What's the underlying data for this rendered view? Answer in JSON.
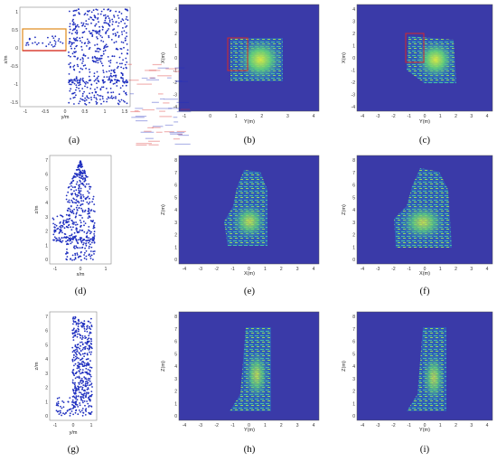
{
  "captions": [
    "(a)",
    "(b)",
    "(c)",
    "(d)",
    "(e)",
    "(f)",
    "(g)",
    "(h)",
    "(i)"
  ],
  "colors": {
    "scatter_point": "#1f2fbf",
    "heatmap_bg": "#3a3aa8",
    "highlight_box": "#d62828",
    "orange_box": "#e08a1a"
  },
  "panels": {
    "a": {
      "xlabel": "y/m",
      "ylabel": "x/m",
      "xticks": [
        "-1",
        "-0.5",
        "0",
        "0.5",
        "1",
        "1.5"
      ],
      "yticks": [
        "1",
        "0.5",
        "0",
        "-0.5",
        "-1",
        "-1.5"
      ]
    },
    "b": {
      "xlabel": "Y(m)",
      "ylabel": "X(m)",
      "xticks": [
        "-1",
        "0",
        "1",
        "2",
        "3",
        "4"
      ],
      "yticks": [
        "4",
        "3",
        "2",
        "1",
        "0",
        "-1",
        "-2",
        "-3",
        "-4"
      ]
    },
    "c": {
      "xlabel": "Y(m)",
      "ylabel": "X(m)",
      "xticks": [
        "-4",
        "-3",
        "-2",
        "-1",
        "0",
        "1",
        "2",
        "3",
        "4"
      ],
      "yticks": [
        "4",
        "3",
        "2",
        "1",
        "0",
        "-1",
        "-2",
        "-3",
        "-4"
      ]
    },
    "d": {
      "xlabel": "x/m",
      "ylabel": "z/m",
      "xticks": [
        "-1",
        "0",
        "1"
      ],
      "yticks": [
        "7",
        "6",
        "5",
        "4",
        "3",
        "2",
        "1",
        "0"
      ]
    },
    "e": {
      "xlabel": "X(m)",
      "ylabel": "Z(m)",
      "xticks": [
        "-4",
        "-3",
        "-2",
        "-1",
        "0",
        "1",
        "2",
        "3",
        "4"
      ],
      "yticks": [
        "8",
        "7",
        "6",
        "5",
        "4",
        "3",
        "2",
        "1",
        "0"
      ]
    },
    "f": {
      "xlabel": "X(m)",
      "ylabel": "Z(m)",
      "xticks": [
        "-4",
        "-3",
        "-2",
        "-1",
        "0",
        "1",
        "2",
        "3",
        "4"
      ],
      "yticks": [
        "8",
        "7",
        "6",
        "5",
        "4",
        "3",
        "2",
        "1",
        "0"
      ]
    },
    "g": {
      "xlabel": "y/m",
      "ylabel": "z/m",
      "xticks": [
        "-1",
        "0",
        "1"
      ],
      "yticks": [
        "7",
        "6",
        "5",
        "4",
        "3",
        "2",
        "1",
        "0"
      ]
    },
    "h": {
      "xlabel": "Y(m)",
      "ylabel": "Z(m)",
      "xticks": [
        "-4",
        "-3",
        "-2",
        "-1",
        "0",
        "1",
        "2",
        "3",
        "4"
      ],
      "yticks": [
        "8",
        "7",
        "6",
        "5",
        "4",
        "3",
        "2",
        "1",
        "0"
      ]
    },
    "i": {
      "xlabel": "Y(m)",
      "ylabel": "Z(m)",
      "xticks": [
        "-4",
        "-3",
        "-2",
        "-1",
        "0",
        "1",
        "2",
        "3",
        "4"
      ],
      "yticks": [
        "8",
        "7",
        "6",
        "5",
        "4",
        "3",
        "2",
        "1",
        "0"
      ]
    }
  }
}
